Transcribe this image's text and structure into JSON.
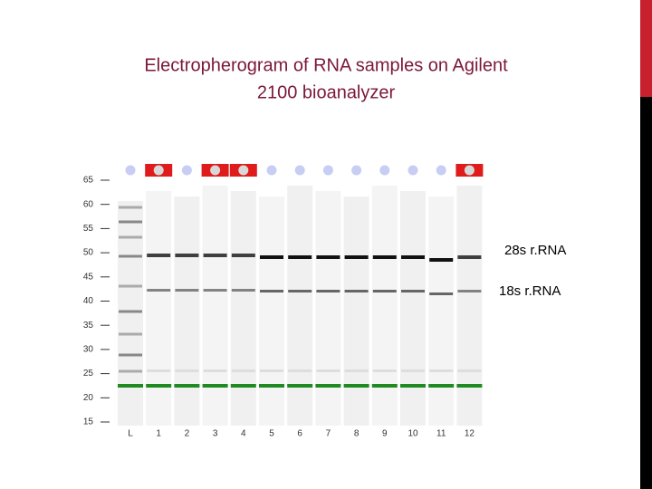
{
  "header": {
    "title_line1": "Electropherogram of RNA samples on Agilent",
    "title_line2": "2100 bioanalyzer"
  },
  "gel": {
    "y_labels": [
      "65",
      "60",
      "55",
      "50",
      "45",
      "40",
      "35",
      "30",
      "25",
      "20",
      "15"
    ],
    "lane_labels": [
      "L",
      "1",
      "2",
      "3",
      "4",
      "5",
      "6",
      "7",
      "8",
      "9",
      "10",
      "11",
      "12"
    ],
    "annotations": [
      "28s r.RNA",
      "18s r.RNA"
    ]
  }
}
